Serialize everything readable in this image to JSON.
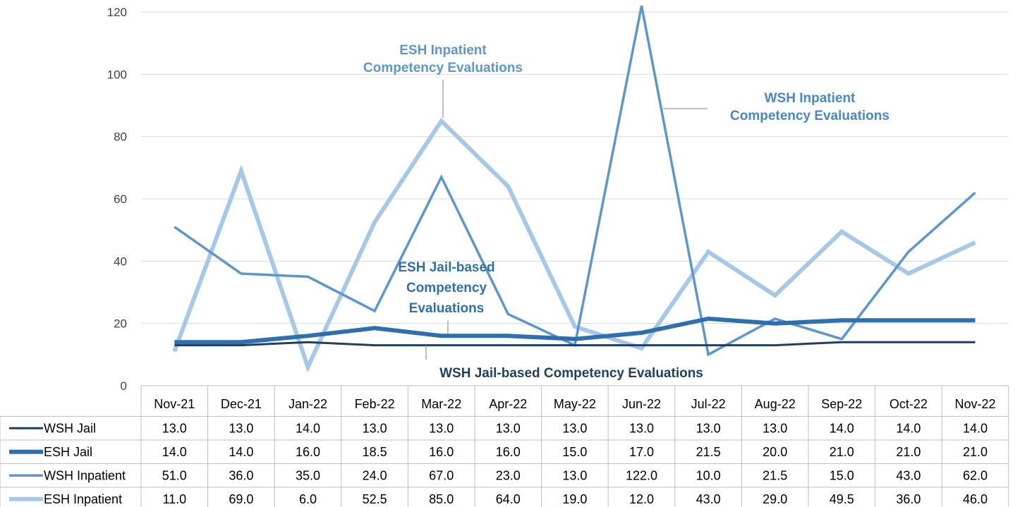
{
  "chart_data": {
    "type": "line",
    "title": "",
    "xlabel": "",
    "ylabel": "",
    "ylim": [
      0,
      120
    ],
    "yticks": [
      "0",
      "20",
      "40",
      "60",
      "80",
      "100",
      "120"
    ],
    "grid": true,
    "legend": "data-table",
    "categories": [
      "Nov-21",
      "Dec-21",
      "Jan-22",
      "Feb-22",
      "Mar-22",
      "Apr-22",
      "May-22",
      "Jun-22",
      "Jul-22",
      "Aug-22",
      "Sep-22",
      "Oct-22",
      "Nov-22"
    ],
    "series": [
      {
        "name": "WSH Jail",
        "color": "#1f3f64",
        "values": [
          13.0,
          13.0,
          14.0,
          13.0,
          13.0,
          13.0,
          13.0,
          13.0,
          13.0,
          13.0,
          14.0,
          14.0,
          14.0
        ],
        "labels": [
          "13.0",
          "13.0",
          "14.0",
          "13.0",
          "13.0",
          "13.0",
          "13.0",
          "13.0",
          "13.0",
          "13.0",
          "14.0",
          "14.0",
          "14.0"
        ]
      },
      {
        "name": "ESH Jail",
        "color": "#2e6faf",
        "values": [
          14.0,
          14.0,
          16.0,
          18.5,
          16.0,
          16.0,
          15.0,
          17.0,
          21.5,
          20.0,
          21.0,
          21.0,
          21.0
        ],
        "labels": [
          "14.0",
          "14.0",
          "16.0",
          "18.5",
          "16.0",
          "16.0",
          "15.0",
          "17.0",
          "21.5",
          "20.0",
          "21.0",
          "21.0",
          "21.0"
        ]
      },
      {
        "name": "WSH Inpatient",
        "color": "#5b96cf",
        "values": [
          51.0,
          36.0,
          35.0,
          24.0,
          67.0,
          23.0,
          13.0,
          122.0,
          10.0,
          21.5,
          15.0,
          43.0,
          62.0
        ],
        "labels": [
          "51.0",
          "36.0",
          "35.0",
          "24.0",
          "67.0",
          "23.0",
          "13.0",
          "122.0",
          "10.0",
          "21.5",
          "15.0",
          "43.0",
          "62.0"
        ]
      },
      {
        "name": "ESH Inpatient",
        "color": "#a6c8e8",
        "values": [
          11.0,
          69.0,
          6.0,
          52.5,
          85.0,
          64.0,
          19.0,
          12.0,
          43.0,
          29.0,
          49.5,
          36.0,
          46.0
        ],
        "labels": [
          "11.0",
          "69.0",
          "6.0",
          "52.5",
          "85.0",
          "64.0",
          "19.0",
          "12.0",
          "43.0",
          "29.0",
          "49.5",
          "36.0",
          "46.0"
        ]
      }
    ],
    "annotations": [
      {
        "lines": [
          "ESH Inpatient",
          "Competency Evaluations"
        ],
        "color": "#5b96cf",
        "series_index": 3,
        "category_index": 4
      },
      {
        "lines": [
          "WSH Inpatient",
          "Competency Evaluations"
        ],
        "color": "#4a86c6",
        "series_index": 2,
        "category_index": 7
      },
      {
        "lines": [
          "ESH Jail-based",
          "Competency",
          "Evaluations"
        ],
        "color": "#2e6faf",
        "series_index": 1,
        "category_index": 5
      },
      {
        "lines": [
          "WSH Jail-based Competency Evaluations"
        ],
        "color": "#1f3f64",
        "series_index": 0,
        "category_index": 4
      }
    ]
  }
}
